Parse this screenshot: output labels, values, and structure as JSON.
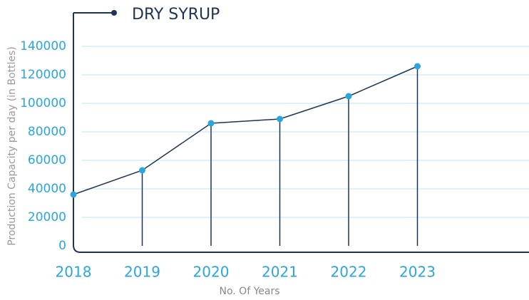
{
  "chart_data": {
    "type": "line",
    "title": "DRY SYRUP",
    "x_label": "No. Of Years",
    "y_label": "Production Capacity per day (in Bottles)",
    "categories": [
      "2018",
      "2019",
      "2020",
      "2021",
      "2022",
      "2023"
    ],
    "series": [
      {
        "name": "DRY SYRUP",
        "color": "#1c3556",
        "marker_color": "#2aa6de",
        "values": [
          36000,
          53000,
          86000,
          89000,
          105000,
          126000
        ]
      }
    ],
    "ylim": [
      0,
      140000
    ],
    "yticks": [
      0,
      20000,
      40000,
      60000,
      80000,
      100000,
      120000,
      140000
    ],
    "grid": true,
    "drop_lines": true
  }
}
